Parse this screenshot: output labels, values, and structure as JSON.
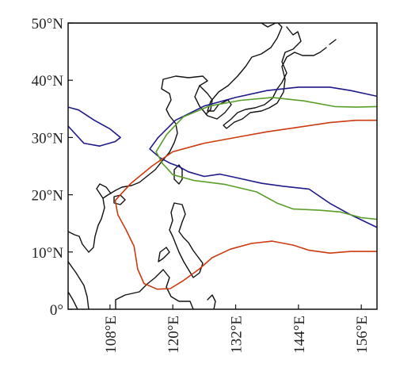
{
  "map": {
    "y_ticks": [
      {
        "value": 50,
        "label": "50°N"
      },
      {
        "value": 40,
        "label": "40°N"
      },
      {
        "value": 30,
        "label": "30°N"
      },
      {
        "value": 20,
        "label": "20°N"
      },
      {
        "value": 10,
        "label": "10°N"
      },
      {
        "value": 0,
        "label": "0°"
      }
    ],
    "x_ticks": [
      {
        "value": 108,
        "label": "108°E"
      },
      {
        "value": 120,
        "label": "120°E"
      },
      {
        "value": 132,
        "label": "132°E"
      },
      {
        "value": 144,
        "label": "144°E"
      },
      {
        "value": 156,
        "label": "156°E"
      }
    ],
    "extent": {
      "lon": [
        100,
        159
      ],
      "lat": [
        0,
        50
      ]
    },
    "contours": [
      {
        "color": "#1f1a8a",
        "points": [
          [
            115.6,
            28
          ],
          [
            117.2,
            30
          ],
          [
            120.5,
            33
          ],
          [
            126,
            35.5
          ],
          [
            132,
            37
          ],
          [
            138,
            38.2
          ],
          [
            144,
            38.8
          ],
          [
            150,
            38.8
          ],
          [
            154,
            38.2
          ],
          [
            159,
            37.2
          ],
          [
            null,
            null
          ],
          [
            121,
            25
          ],
          [
            123,
            24
          ],
          [
            126,
            23.2
          ],
          [
            129,
            23.6
          ],
          [
            132,
            23
          ],
          [
            137,
            22
          ],
          [
            141,
            21.5
          ],
          [
            146,
            21
          ],
          [
            150,
            18.5
          ],
          [
            154,
            16.5
          ],
          [
            159,
            14.3
          ],
          [
            null,
            null
          ],
          [
            115.6,
            28
          ],
          [
            117.5,
            26.5
          ],
          [
            119.5,
            25.5
          ],
          [
            121,
            25
          ],
          [
            null,
            null
          ],
          [
            100,
            35.3
          ],
          [
            102,
            34.8
          ],
          [
            105,
            33
          ],
          [
            108,
            31.5
          ],
          [
            110,
            30
          ],
          [
            109,
            29.3
          ],
          [
            106,
            28.5
          ],
          [
            103,
            29
          ],
          [
            100,
            32
          ]
        ]
      },
      {
        "color": "#5a9e2a",
        "points": [
          [
            116.8,
            27.5
          ],
          [
            118.8,
            30.5
          ],
          [
            122,
            33.6
          ],
          [
            127,
            35.5
          ],
          [
            133,
            36.5
          ],
          [
            139,
            37
          ],
          [
            145,
            36.4
          ],
          [
            151,
            35.4
          ],
          [
            155,
            35.3
          ],
          [
            159,
            35.4
          ],
          [
            null,
            null
          ],
          [
            116.8,
            27.5
          ],
          [
            118,
            25.5
          ],
          [
            120,
            23.5
          ],
          [
            124,
            22.5
          ],
          [
            130,
            21.8
          ],
          [
            136,
            20.5
          ],
          [
            140,
            18.5
          ],
          [
            143,
            17.5
          ],
          [
            148,
            17.3
          ],
          [
            152,
            17
          ],
          [
            156,
            16
          ],
          [
            159,
            15.7
          ]
        ]
      },
      {
        "color": "#cc3a10",
        "points": [
          [
            109,
            19
          ],
          [
            112,
            22
          ],
          [
            116,
            25
          ],
          [
            120,
            27.5
          ],
          [
            126,
            29
          ],
          [
            132,
            30
          ],
          [
            138,
            31
          ],
          [
            144,
            31.8
          ],
          [
            150,
            32.6
          ],
          [
            155,
            33
          ],
          [
            159,
            33
          ],
          [
            null,
            null
          ],
          [
            109,
            19
          ],
          [
            109.5,
            16.5
          ],
          [
            111,
            14
          ],
          [
            112.6,
            11
          ],
          [
            113.3,
            7
          ],
          [
            114.5,
            4.5
          ],
          [
            117,
            3.5
          ],
          [
            119.5,
            3.6
          ],
          [
            122,
            5
          ],
          [
            125,
            7
          ],
          [
            127.5,
            9
          ],
          [
            131,
            10.5
          ],
          [
            135,
            11.5
          ],
          [
            139,
            11.9
          ],
          [
            143,
            11.2
          ],
          [
            146,
            10.3
          ],
          [
            150,
            9.8
          ],
          [
            154,
            10.1
          ],
          [
            159,
            10.1
          ]
        ]
      }
    ]
  }
}
